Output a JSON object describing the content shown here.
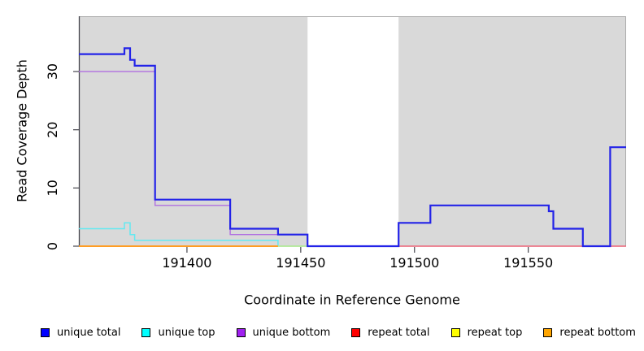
{
  "chart_data": {
    "type": "line",
    "line_style": "step",
    "title": "",
    "xlabel": "Coordinate in Reference Genome",
    "ylabel": "Read Coverage Depth",
    "xlim": [
      191352.5,
      191593
    ],
    "ylim": [
      0,
      39.5
    ],
    "x_ticks": [
      191400,
      191450,
      191500,
      191550
    ],
    "y_ticks": [
      0,
      10,
      20,
      30
    ],
    "grid": false,
    "legend_position": "bottom",
    "plot_background": "#d9d9d9",
    "masked_region": {
      "from": 191453,
      "to": 191493,
      "color": "#ffffff"
    },
    "series": [
      {
        "name": "unique total",
        "color": "#0000ff",
        "line_color": "#2323e8",
        "width": 2.2,
        "opacity": 1,
        "steps": [
          [
            191352.5,
            33
          ],
          [
            191372.5,
            34
          ],
          [
            191375,
            32
          ],
          [
            191377,
            31
          ],
          [
            191386,
            8
          ],
          [
            191419,
            3
          ],
          [
            191440,
            2
          ],
          [
            191453,
            0
          ],
          [
            191493,
            4
          ],
          [
            191507,
            7
          ],
          [
            191559,
            6
          ],
          [
            191561,
            3
          ],
          [
            191574,
            0
          ],
          [
            191586,
            17
          ],
          [
            191593,
            17
          ]
        ]
      },
      {
        "name": "unique top",
        "color": "#00ffff",
        "line_color": "#63e9f1",
        "width": 1.5,
        "opacity": 1,
        "steps": [
          [
            191352.5,
            3
          ],
          [
            191372.5,
            4
          ],
          [
            191375,
            2
          ],
          [
            191377,
            1
          ],
          [
            191440,
            0
          ],
          [
            191453,
            0
          ]
        ]
      },
      {
        "name": "unique bottom",
        "color": "#a020f0",
        "line_color": "#b06fe0",
        "width": 1.4,
        "opacity": 1,
        "steps": [
          [
            191352.5,
            30
          ],
          [
            191386,
            7
          ],
          [
            191419,
            2
          ],
          [
            191453,
            0
          ],
          [
            191493,
            0
          ]
        ]
      },
      {
        "name": "repeat total",
        "color": "#ff0000",
        "line_color": "#ec6075",
        "width": 1.5,
        "opacity": 1,
        "steps": [
          [
            191493,
            0
          ],
          [
            191593,
            0
          ]
        ]
      },
      {
        "name": "repeat top",
        "color": "#ffff00",
        "line_color": "#d8e85a",
        "width": 1.5,
        "opacity": 0.7,
        "steps": [
          [
            191440,
            0
          ],
          [
            191453,
            0
          ]
        ]
      },
      {
        "name": "repeat bottom",
        "color": "#ffa500",
        "line_color": "#ff9d24",
        "width": 2,
        "opacity": 1,
        "steps": [
          [
            191352.5,
            0
          ],
          [
            191440,
            0
          ]
        ]
      }
    ]
  }
}
